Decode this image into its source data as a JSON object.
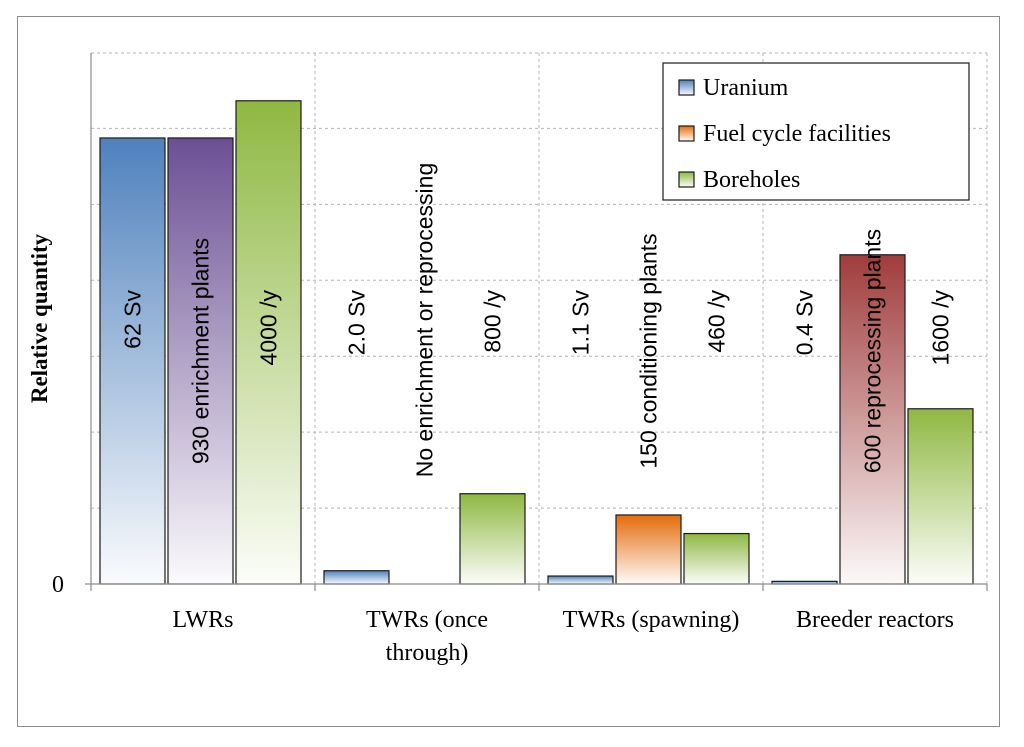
{
  "chart_data": {
    "type": "bar",
    "ylabel": "Relative quantity",
    "y_tick_labels": [
      "0"
    ],
    "ylim": [
      0,
      100
    ],
    "categories": [
      [
        "LWRs"
      ],
      [
        "TWRs (once",
        "through)"
      ],
      [
        "TWRs (spawning)"
      ],
      [
        "Breeder reactors"
      ]
    ],
    "series": [
      {
        "name": "Uranium",
        "color": "#4f81bd",
        "values": [
          84,
          2.5,
          1.5,
          0.5
        ]
      },
      {
        "name": "Fuel cycle facilities",
        "color": "#e46c0a",
        "values": [
          84,
          0,
          13,
          62
        ]
      },
      {
        "name": "Boreholes",
        "color": "#8fb842",
        "values": [
          91,
          17,
          9.5,
          33
        ]
      }
    ],
    "bar_colors": [
      [
        "#4f81bd",
        "#6b4f94",
        "#8fb842"
      ],
      [
        "#4f81bd",
        "#e46c0a",
        "#8fb842"
      ],
      [
        "#4f81bd",
        "#e46c0a",
        "#8fb842"
      ],
      [
        "#4f81bd",
        "#a03c3c",
        "#8fb842"
      ]
    ],
    "annotations": [
      [
        "62 Sv",
        "930 enrichment plants",
        "4000 /y"
      ],
      [
        "2.0 Sv",
        "No enrichment or reprocessing",
        "800 /y"
      ],
      [
        "1.1 Sv",
        "150 conditioning plants",
        "460 /y"
      ],
      [
        "0.4 Sv",
        "600 reprocessing plants",
        "1600 /y"
      ]
    ],
    "grid": true,
    "legend_position": "top-right"
  }
}
